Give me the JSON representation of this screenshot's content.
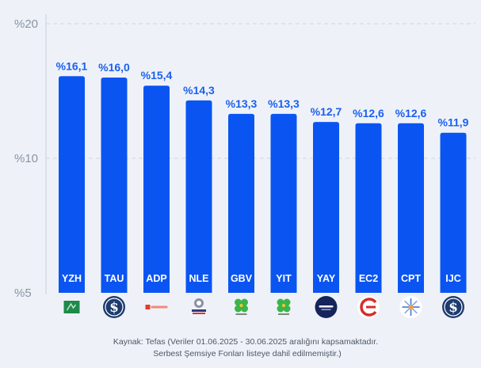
{
  "chart_data": {
    "type": "bar",
    "categories": [
      "YZH",
      "TAU",
      "ADP",
      "NLE",
      "GBV",
      "YIT",
      "YAY",
      "EC2",
      "CPT",
      "IJC"
    ],
    "values": [
      16.1,
      16.0,
      15.4,
      14.3,
      13.3,
      13.3,
      12.7,
      12.6,
      12.6,
      11.9
    ],
    "value_labels": [
      "%16,1",
      "%16,0",
      "%15,4",
      "%14,3",
      "%13,3",
      "%13,3",
      "%12,7",
      "%12,6",
      "%12,6",
      "%11,9"
    ],
    "y_ticks": [
      5,
      10,
      20
    ],
    "y_tick_labels": [
      "%5",
      "%10",
      "%20"
    ],
    "ylim": [
      5,
      20
    ],
    "grid": true,
    "bar_color": "#0a55f2",
    "label_color": "#1a5ff0",
    "logos": [
      "bank-green-icon",
      "dollar-circle-icon",
      "portfolio-red-icon",
      "nurol-icon",
      "clover-icon",
      "clover-icon",
      "navy-circle-icon",
      "red-arc-icon",
      "star-compass-icon",
      "dollar-circle-icon"
    ]
  },
  "source": {
    "line1": "Kaynak: Tefas (Veriler 01.06.2025 - 30.06.2025 aralığını kapsamaktadır.",
    "line2": "Serbest Şemsiye Fonları listeye dahil edilmemiştir.)"
  }
}
